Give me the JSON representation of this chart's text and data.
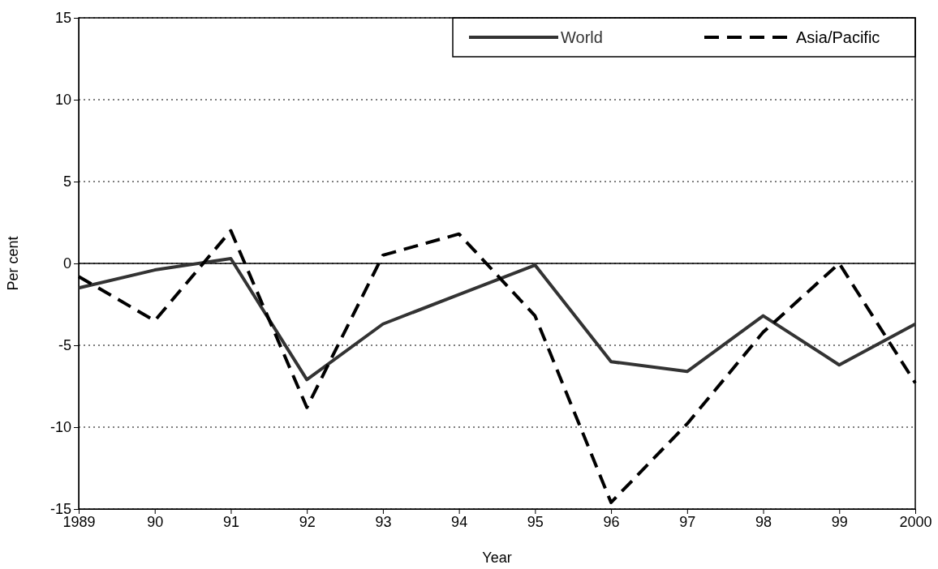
{
  "chart_data": {
    "type": "line",
    "xlabel": "Year",
    "ylabel": "Per cent",
    "categories": [
      "1989",
      "90",
      "91",
      "92",
      "93",
      "94",
      "95",
      "96",
      "97",
      "98",
      "99",
      "2000"
    ],
    "series": [
      {
        "name": "World",
        "color": "#333333",
        "line_style": "solid",
        "values": [
          -1.5,
          -0.4,
          0.3,
          -7.1,
          -3.7,
          -1.9,
          -0.1,
          -6.0,
          -6.6,
          -3.2,
          -6.2,
          -3.7
        ]
      },
      {
        "name": "Asia/Pacific",
        "color": "#000000",
        "line_style": "dashed",
        "values": [
          -0.8,
          -3.5,
          2.0,
          -8.8,
          0.5,
          1.8,
          -3.2,
          -14.6,
          -9.8,
          -4.2,
          0.0,
          -7.3
        ]
      }
    ],
    "ylim": [
      -15,
      15
    ],
    "yticks": [
      -15,
      -10,
      -5,
      0,
      5,
      10,
      15
    ],
    "grid": "y",
    "legend": "top right",
    "ref_lines": [
      {
        "axis": "y",
        "value": 0,
        "color": "#000000",
        "line_style": "solid"
      }
    ]
  }
}
